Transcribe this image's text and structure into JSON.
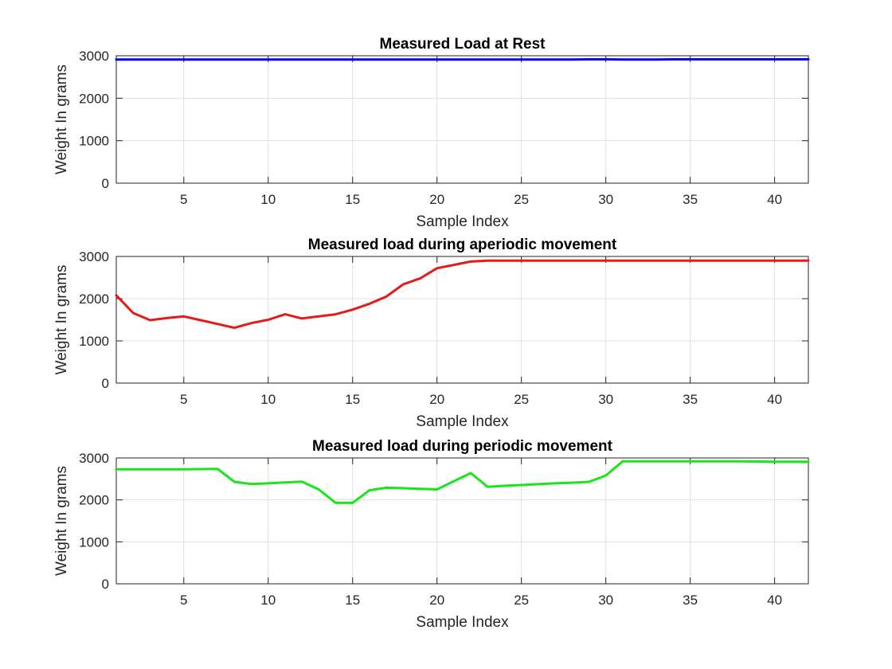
{
  "chart_data": [
    {
      "type": "line",
      "title": "Measured Load at Rest",
      "xlabel": "Sample Index",
      "ylabel": "Weight In grams",
      "xlim": [
        1,
        42
      ],
      "ylim": [
        0,
        3000
      ],
      "xticks": [
        5,
        10,
        15,
        20,
        25,
        30,
        35,
        40
      ],
      "yticks": [
        0,
        1000,
        2000,
        3000
      ],
      "grid": true,
      "color": "#0000ff",
      "series": [
        {
          "x": [
            1,
            2,
            3,
            4,
            5,
            6,
            7,
            8,
            9,
            10,
            11,
            12,
            13,
            14,
            15,
            16,
            17,
            18,
            19,
            20,
            21,
            22,
            23,
            24,
            25,
            26,
            27,
            28,
            29,
            30,
            31,
            32,
            33,
            34,
            35,
            36,
            37,
            38,
            39,
            40,
            41,
            42
          ],
          "values": [
            2910,
            2910,
            2910,
            2910,
            2910,
            2910,
            2910,
            2910,
            2910,
            2910,
            2910,
            2910,
            2910,
            2910,
            2910,
            2910,
            2910,
            2910,
            2910,
            2910,
            2910,
            2910,
            2910,
            2910,
            2910,
            2910,
            2910,
            2910,
            2915,
            2915,
            2912,
            2912,
            2912,
            2915,
            2915,
            2915,
            2915,
            2915,
            2915,
            2915,
            2915,
            2915
          ]
        }
      ]
    },
    {
      "type": "line",
      "title": "Measured load during aperiodic movement",
      "xlabel": "Sample Index",
      "ylabel": "Weight In grams",
      "xlim": [
        1,
        42
      ],
      "ylim": [
        0,
        3000
      ],
      "xticks": [
        5,
        10,
        15,
        20,
        25,
        30,
        35,
        40
      ],
      "yticks": [
        0,
        1000,
        2000,
        3000
      ],
      "grid": true,
      "color": "#e61a1a",
      "series": [
        {
          "x": [
            1,
            2,
            3,
            4,
            5,
            6,
            7,
            8,
            9,
            10,
            11,
            12,
            13,
            14,
            15,
            16,
            17,
            18,
            19,
            20,
            21,
            22,
            23,
            24,
            25,
            26,
            27,
            28,
            29,
            30,
            31,
            32,
            33,
            34,
            35,
            36,
            37,
            38,
            39,
            40,
            41,
            42
          ],
          "values": [
            2080,
            1660,
            1490,
            1540,
            1580,
            1490,
            1400,
            1310,
            1420,
            1500,
            1630,
            1530,
            1580,
            1630,
            1740,
            1880,
            2050,
            2340,
            2480,
            2720,
            2800,
            2880,
            2900,
            2900,
            2900,
            2900,
            2900,
            2900,
            2900,
            2900,
            2900,
            2900,
            2900,
            2900,
            2900,
            2900,
            2900,
            2900,
            2900,
            2900,
            2900,
            2900
          ]
        }
      ]
    },
    {
      "type": "line",
      "title": "Measured load during periodic movement",
      "xlabel": "Sample Index",
      "ylabel": "Weight In grams",
      "xlim": [
        1,
        42
      ],
      "ylim": [
        0,
        3000
      ],
      "xticks": [
        5,
        10,
        15,
        20,
        25,
        30,
        35,
        40
      ],
      "yticks": [
        0,
        1000,
        2000,
        3000
      ],
      "grid": true,
      "color": "#19e619",
      "series": [
        {
          "x": [
            1,
            2,
            3,
            4,
            5,
            6,
            7,
            8,
            9,
            10,
            11,
            12,
            13,
            14,
            15,
            16,
            17,
            18,
            19,
            20,
            21,
            22,
            23,
            24,
            25,
            26,
            27,
            28,
            29,
            30,
            31,
            32,
            33,
            34,
            35,
            36,
            37,
            38,
            39,
            40,
            41,
            42
          ],
          "values": [
            2730,
            2730,
            2730,
            2730,
            2730,
            2735,
            2740,
            2430,
            2380,
            2395,
            2415,
            2435,
            2250,
            1930,
            1930,
            2230,
            2290,
            2280,
            2265,
            2250,
            2445,
            2640,
            2310,
            2335,
            2355,
            2375,
            2395,
            2410,
            2430,
            2580,
            2920,
            2920,
            2920,
            2920,
            2920,
            2920,
            2920,
            2920,
            2915,
            2910,
            2910,
            2910
          ]
        }
      ]
    }
  ]
}
